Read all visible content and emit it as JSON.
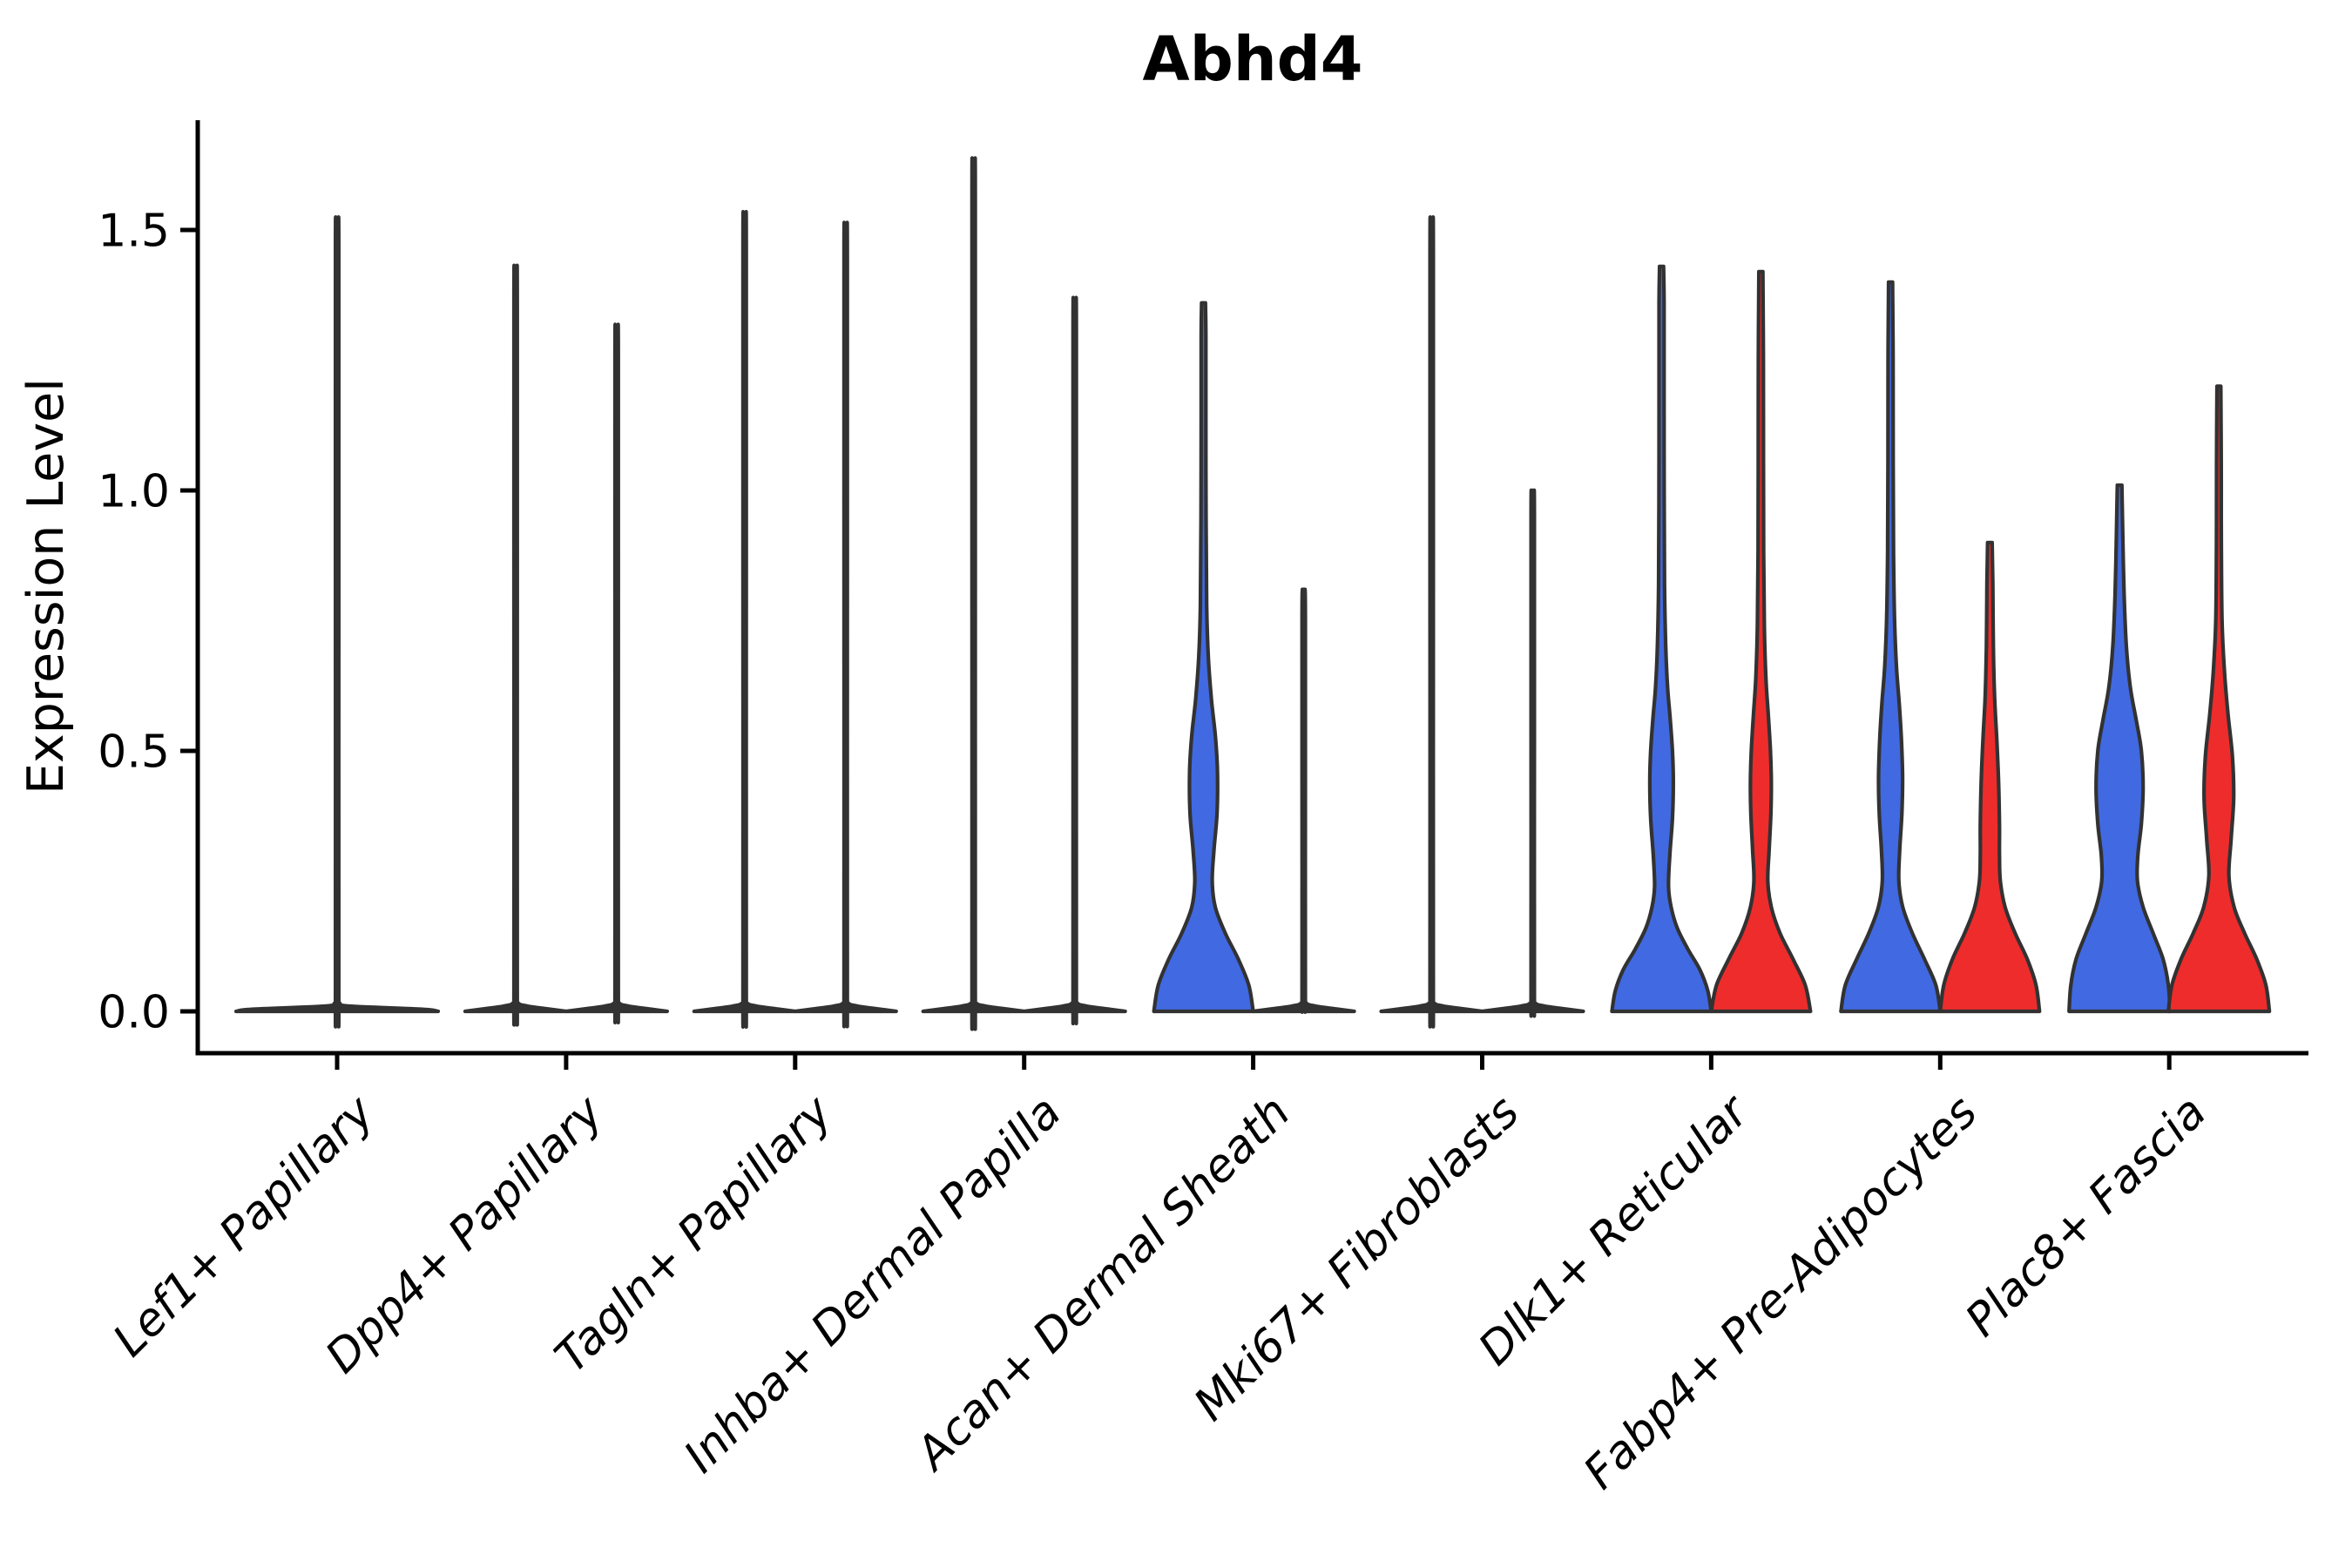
{
  "title": "Abhd4",
  "y_axis": {
    "label": "Expression Level",
    "ticks": [
      "0.0",
      "0.5",
      "1.0",
      "1.5"
    ],
    "tick_values": [
      0.0,
      0.5,
      1.0,
      1.5
    ]
  },
  "x_axis": {
    "categories": [
      "Lef1+ Papillary",
      "Dpp4+ Papillary",
      "Tagln+ Papillary",
      "Inhba+ Dermal Papilla",
      "Acan+ Dermal Sheath",
      "Mki67+ Fibroblasts",
      "Dlk1+ Reticular",
      "Fabp4+ Pre-Adipocytes",
      "Plac8+ Fascia"
    ]
  },
  "colors": {
    "blue": "#4169e1",
    "red": "#ee2c2c",
    "dark": "#323232",
    "outline": "#323232",
    "axis": "#000000"
  },
  "chart_data": {
    "type": "violin",
    "title": "Abhd4",
    "ylabel": "Expression Level",
    "ylim": [
      0,
      1.7
    ],
    "grid": false,
    "legend": "none",
    "categories": [
      "Lef1+ Papillary",
      "Dpp4+ Papillary",
      "Tagln+ Papillary",
      "Inhba+ Dermal Papilla",
      "Acan+ Dermal Sheath",
      "Mki67+ Fibroblasts",
      "Dlk1+ Reticular",
      "Fabp4+ Pre-Adipocytes",
      "Plac8+ Fascia"
    ],
    "groups": [
      {
        "category": "Lef1+ Papillary",
        "violins": [
          {
            "side": "full",
            "color": "dark",
            "dx": 0,
            "type": "spike",
            "hw": 116,
            "max": 1.51
          }
        ]
      },
      {
        "category": "Dpp4+ Papillary",
        "violins": [
          {
            "side": "left",
            "color": "dark",
            "dx": -58,
            "type": "spike",
            "hw": 58,
            "max": 1.42
          },
          {
            "side": "right",
            "color": "dark",
            "dx": 58,
            "type": "spike",
            "hw": 58,
            "max": 1.31
          }
        ]
      },
      {
        "category": "Tagln+ Papillary",
        "violins": [
          {
            "side": "left",
            "color": "dark",
            "dx": -58,
            "type": "spike",
            "hw": 58,
            "max": 1.52
          },
          {
            "side": "right",
            "color": "dark",
            "dx": 58,
            "type": "spike",
            "hw": 58,
            "max": 1.5
          }
        ]
      },
      {
        "category": "Inhba+ Dermal Papilla",
        "violins": [
          {
            "side": "left",
            "color": "dark",
            "dx": -58,
            "type": "spike",
            "hw": 58,
            "max": 1.62
          },
          {
            "side": "right",
            "color": "dark",
            "dx": 58,
            "type": "spike",
            "hw": 58,
            "max": 1.36
          }
        ]
      },
      {
        "category": "Acan+ Dermal Sheath",
        "violins": [
          {
            "side": "left",
            "color": "blue",
            "dx": -57,
            "type": "density",
            "max": 1.36,
            "profile": [
              [
                0,
                57
              ],
              [
                0.05,
                52
              ],
              [
                0.1,
                40
              ],
              [
                0.15,
                25
              ],
              [
                0.2,
                13.5
              ],
              [
                0.25,
                10
              ],
              [
                0.31,
                12
              ],
              [
                0.38,
                15.5
              ],
              [
                0.46,
                16
              ],
              [
                0.53,
                13.5
              ],
              [
                0.6,
                9
              ],
              [
                0.68,
                5.5
              ],
              [
                0.78,
                3.6
              ],
              [
                0.95,
                2.9
              ],
              [
                1.15,
                2.7
              ],
              [
                1.3,
                2.7
              ],
              [
                1.36,
                2.2
              ]
            ]
          },
          {
            "side": "right",
            "color": "dark",
            "dx": 58,
            "type": "spike",
            "hw": 58,
            "max": 0.81
          }
        ]
      },
      {
        "category": "Mki67+ Fibroblasts",
        "violins": [
          {
            "side": "left",
            "color": "dark",
            "dx": -58,
            "type": "spike",
            "hw": 58,
            "max": 1.51
          },
          {
            "side": "right",
            "color": "dark",
            "dx": 58,
            "type": "spike",
            "hw": 58,
            "max": 1.0
          }
        ]
      },
      {
        "category": "Dlk1+ Reticular",
        "violins": [
          {
            "side": "left",
            "color": "blue",
            "dx": -57,
            "type": "density",
            "max": 1.43,
            "profile": [
              [
                0,
                57
              ],
              [
                0.04,
                53
              ],
              [
                0.08,
                44
              ],
              [
                0.12,
                30
              ],
              [
                0.16,
                18
              ],
              [
                0.2,
                11
              ],
              [
                0.24,
                8
              ],
              [
                0.3,
                9.5
              ],
              [
                0.37,
                12.5
              ],
              [
                0.44,
                13.5
              ],
              [
                0.5,
                12.5
              ],
              [
                0.56,
                10
              ],
              [
                0.62,
                7
              ],
              [
                0.7,
                4.8
              ],
              [
                0.82,
                3.4
              ],
              [
                1.0,
                3
              ],
              [
                1.2,
                2.9
              ],
              [
                1.36,
                2.9
              ],
              [
                1.43,
                2.3
              ]
            ]
          },
          {
            "side": "right",
            "color": "red",
            "dx": 57,
            "type": "density",
            "max": 1.42,
            "profile": [
              [
                0,
                57
              ],
              [
                0.05,
                51
              ],
              [
                0.1,
                37
              ],
              [
                0.15,
                22
              ],
              [
                0.2,
                12
              ],
              [
                0.25,
                8
              ],
              [
                0.31,
                9.5
              ],
              [
                0.38,
                11.5
              ],
              [
                0.44,
                12
              ],
              [
                0.5,
                11
              ],
              [
                0.57,
                8.5
              ],
              [
                0.64,
                5.8
              ],
              [
                0.74,
                4
              ],
              [
                0.88,
                3.2
              ],
              [
                1.05,
                3
              ],
              [
                1.25,
                2.9
              ],
              [
                1.42,
                2.3
              ]
            ]
          }
        ]
      },
      {
        "category": "Fabp4+ Pre-Adipocytes",
        "violins": [
          {
            "side": "left",
            "color": "blue",
            "dx": -57,
            "type": "density",
            "max": 1.4,
            "profile": [
              [
                0,
                57
              ],
              [
                0.05,
                52
              ],
              [
                0.1,
                39
              ],
              [
                0.15,
                25
              ],
              [
                0.2,
                14
              ],
              [
                0.25,
                9.5
              ],
              [
                0.31,
                10.5
              ],
              [
                0.38,
                13
              ],
              [
                0.45,
                13.8
              ],
              [
                0.52,
                12.5
              ],
              [
                0.59,
                10
              ],
              [
                0.66,
                6.8
              ],
              [
                0.75,
                4.6
              ],
              [
                0.88,
                3.4
              ],
              [
                1.05,
                3
              ],
              [
                1.25,
                2.9
              ],
              [
                1.4,
                2.3
              ]
            ]
          },
          {
            "side": "right",
            "color": "red",
            "dx": 57,
            "type": "density",
            "max": 0.9,
            "profile": [
              [
                0,
                57
              ],
              [
                0.05,
                53
              ],
              [
                0.1,
                43
              ],
              [
                0.15,
                29
              ],
              [
                0.2,
                17.5
              ],
              [
                0.25,
                12
              ],
              [
                0.3,
                11
              ],
              [
                0.36,
                11
              ],
              [
                0.44,
                10
              ],
              [
                0.52,
                8
              ],
              [
                0.6,
                5.5
              ],
              [
                0.7,
                4
              ],
              [
                0.82,
                3.4
              ],
              [
                0.9,
                2.6
              ]
            ]
          }
        ]
      },
      {
        "category": "Plac8+ Fascia",
        "violins": [
          {
            "side": "left",
            "color": "blue",
            "dx": -57,
            "type": "density",
            "max": 1.01,
            "profile": [
              [
                0,
                58
              ],
              [
                0.05,
                56
              ],
              [
                0.1,
                50
              ],
              [
                0.15,
                38.5
              ],
              [
                0.2,
                27
              ],
              [
                0.25,
                20.5
              ],
              [
                0.3,
                21
              ],
              [
                0.36,
                25
              ],
              [
                0.43,
                27
              ],
              [
                0.5,
                25
              ],
              [
                0.56,
                19
              ],
              [
                0.62,
                12.5
              ],
              [
                0.7,
                7.8
              ],
              [
                0.8,
                5.2
              ],
              [
                0.92,
                3.6
              ],
              [
                1.01,
                2.6
              ]
            ]
          },
          {
            "side": "right",
            "color": "red",
            "dx": 57,
            "type": "density",
            "max": 1.2,
            "profile": [
              [
                0,
                58
              ],
              [
                0.05,
                54
              ],
              [
                0.1,
                43.5
              ],
              [
                0.15,
                29.5
              ],
              [
                0.2,
                17.5
              ],
              [
                0.26,
                11.5
              ],
              [
                0.33,
                14
              ],
              [
                0.41,
                17
              ],
              [
                0.49,
                15.5
              ],
              [
                0.57,
                10.5
              ],
              [
                0.65,
                6.5
              ],
              [
                0.75,
                3.6
              ],
              [
                0.9,
                2.8
              ],
              [
                1.05,
                2.7
              ],
              [
                1.2,
                2.2
              ]
            ]
          }
        ]
      }
    ]
  }
}
